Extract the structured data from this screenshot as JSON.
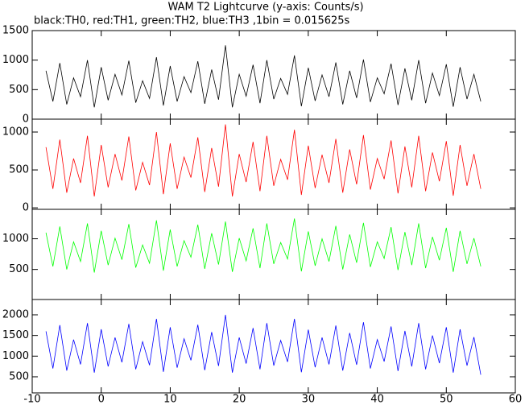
{
  "title": "WAM T2 Lightcurve (y-axis: Counts/s)",
  "subtitle": "black:TH0, red:TH1, green:TH2, blue:TH3 ,1bin = 0.015625s",
  "xlim": [
    -10,
    60
  ],
  "xticks": [
    -10,
    0,
    10,
    20,
    30,
    40,
    50,
    60
  ],
  "x": [
    -8,
    -7,
    -6,
    -5,
    -4,
    -3,
    -2,
    -1,
    0,
    1,
    2,
    3,
    4,
    5,
    6,
    7,
    8,
    9,
    10,
    11,
    12,
    13,
    14,
    15,
    16,
    17,
    18,
    19,
    20,
    21,
    22,
    23,
    24,
    25,
    26,
    27,
    28,
    29,
    30,
    31,
    32,
    33,
    34,
    35,
    36,
    37,
    38,
    39,
    40,
    41,
    42,
    43,
    44,
    45,
    46,
    47,
    48,
    49,
    50,
    51,
    52,
    53,
    54,
    55
  ],
  "chart_data": [
    {
      "type": "line",
      "ylim": [
        0,
        1500
      ],
      "yticks": [
        0,
        500,
        1000,
        1500
      ],
      "series": [
        {
          "color": "#000000",
          "values": [
            820,
            300,
            950,
            250,
            700,
            380,
            1000,
            200,
            880,
            320,
            760,
            410,
            990,
            280,
            650,
            350,
            1050,
            230,
            900,
            300,
            720,
            450,
            980,
            260,
            840,
            330,
            1250,
            200,
            760,
            390,
            920,
            270,
            1000,
            340,
            690,
            420,
            1080,
            220,
            870,
            310,
            750,
            380,
            960,
            250,
            820,
            360,
            1010,
            290,
            700,
            430,
            940,
            240,
            860,
            320,
            1000,
            270,
            780,
            400,
            930,
            210,
            880,
            340,
            760,
            300
          ]
        }
      ]
    },
    {
      "type": "line",
      "ylim": [
        -20,
        1170
      ],
      "yticks": [
        0,
        500,
        1000
      ],
      "series": [
        {
          "color": "#ff0000",
          "values": [
            800,
            250,
            900,
            200,
            650,
            330,
            950,
            150,
            830,
            270,
            710,
            360,
            940,
            230,
            600,
            300,
            1000,
            180,
            850,
            250,
            670,
            400,
            930,
            210,
            790,
            280,
            1100,
            150,
            710,
            340,
            870,
            220,
            950,
            290,
            640,
            370,
            1030,
            170,
            820,
            260,
            700,
            330,
            910,
            200,
            770,
            310,
            960,
            240,
            650,
            380,
            890,
            190,
            810,
            270,
            950,
            220,
            730,
            350,
            880,
            160,
            830,
            290,
            710,
            250
          ]
        }
      ]
    },
    {
      "type": "line",
      "ylim": [
        10,
        1480
      ],
      "yticks": [
        500,
        1000
      ],
      "series": [
        {
          "color": "#00ff00",
          "values": [
            1100,
            550,
            1200,
            500,
            950,
            630,
            1250,
            450,
            1130,
            570,
            1010,
            660,
            1240,
            530,
            900,
            600,
            1300,
            480,
            1150,
            550,
            970,
            700,
            1230,
            510,
            1090,
            580,
            1280,
            460,
            1010,
            640,
            1170,
            520,
            1250,
            590,
            940,
            670,
            1330,
            470,
            1120,
            560,
            1000,
            630,
            1210,
            500,
            1070,
            610,
            1260,
            540,
            950,
            680,
            1190,
            490,
            1110,
            570,
            1250,
            520,
            1030,
            650,
            1180,
            460,
            1130,
            590,
            1010,
            550
          ]
        }
      ]
    },
    {
      "type": "line",
      "ylim": [
        110,
        2370
      ],
      "yticks": [
        500,
        1000,
        1500,
        2000
      ],
      "series": [
        {
          "color": "#0000ff",
          "values": [
            1600,
            700,
            1750,
            650,
            1400,
            800,
            1800,
            600,
            1650,
            750,
            1450,
            850,
            1780,
            680,
            1350,
            780,
            1900,
            620,
            1700,
            720,
            1420,
            900,
            1760,
            660,
            1580,
            760,
            2000,
            600,
            1450,
            820,
            1680,
            680,
            1800,
            770,
            1380,
            860,
            1900,
            610,
            1640,
            730,
            1450,
            800,
            1740,
            650,
            1560,
            790,
            1820,
            700,
            1400,
            870,
            1720,
            640,
            1610,
            750,
            1800,
            680,
            1500,
            830,
            1700,
            600,
            1650,
            770,
            1460,
            550
          ]
        }
      ]
    }
  ]
}
